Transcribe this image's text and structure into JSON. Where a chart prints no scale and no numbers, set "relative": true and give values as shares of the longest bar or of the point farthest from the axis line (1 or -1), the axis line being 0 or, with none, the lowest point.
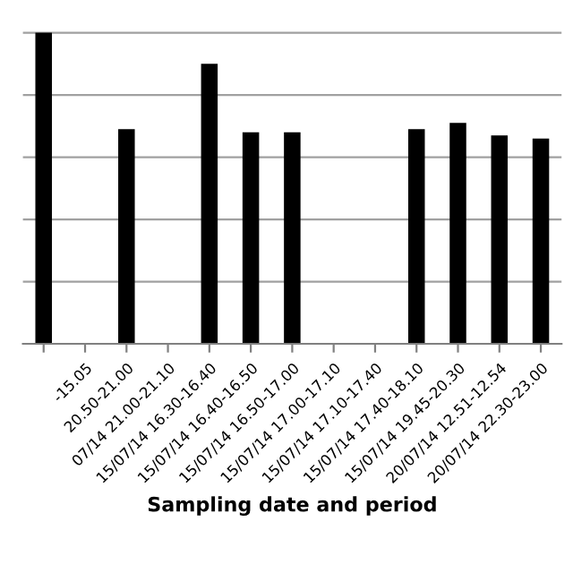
{
  "chart_data": {
    "type": "bar",
    "relative": true,
    "xlabel": "Sampling date and period",
    "categories": [
      null,
      "-15.05",
      "20.50-21.00",
      "07/14 21.00-21.10",
      "15/07/14 16.30-16.40",
      "15/07/14 16.40-16.50",
      "15/07/14 16.50-17.00",
      "15/07/14 17.00-17.10",
      "15/07/14 17.10-17.40",
      "15/07/14 17.40-18.10",
      "15/07/14 19.45-20.30",
      "20/07/14 12.51-12.54",
      "20/07/14 22.30-23.00"
    ],
    "values": [
      1,
      0,
      0.69,
      0,
      0.9,
      0.68,
      0.68,
      0,
      0,
      0.69,
      0.71,
      0.67,
      0.66
    ],
    "color": "#000000",
    "grid": "y",
    "legend": false
  }
}
